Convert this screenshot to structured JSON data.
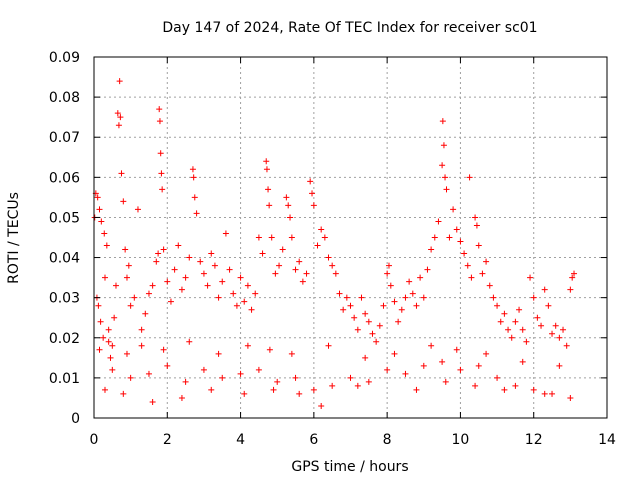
{
  "chart_data": {
    "type": "scatter",
    "title": "Day 147 of 2024, Rate Of TEC Index for receiver sc01",
    "xlabel": "GPS time / hours",
    "ylabel": "ROTI / TECUs",
    "xlim": [
      0,
      14
    ],
    "ylim": [
      0,
      0.09
    ],
    "x_ticks": [
      0,
      2,
      4,
      6,
      8,
      10,
      12,
      14
    ],
    "x_tick_labels": [
      "0",
      "2",
      "4",
      "6",
      "8",
      "10",
      "12",
      "14"
    ],
    "y_ticks": [
      0,
      0.01,
      0.02,
      0.03,
      0.04,
      0.05,
      0.06,
      0.07,
      0.08,
      0.09
    ],
    "y_tick_labels": [
      "0",
      "0.01",
      "0.02",
      "0.03",
      "0.04",
      "0.05",
      "0.06",
      "0.07",
      "0.08",
      "0.09"
    ],
    "grid": true,
    "marker": "plus",
    "series_color": "#ff0000",
    "series": [
      {
        "name": "ROTI",
        "points": [
          [
            0.05,
            0.056
          ],
          [
            0.1,
            0.055
          ],
          [
            0.15,
            0.052
          ],
          [
            0.2,
            0.049
          ],
          [
            0.28,
            0.046
          ],
          [
            0.35,
            0.043
          ],
          [
            0.02,
            0.05
          ],
          [
            0.08,
            0.03
          ],
          [
            0.12,
            0.028
          ],
          [
            0.18,
            0.024
          ],
          [
            0.25,
            0.02
          ],
          [
            0.3,
            0.035
          ],
          [
            0.4,
            0.022
          ],
          [
            0.45,
            0.015
          ],
          [
            0.5,
            0.018
          ],
          [
            0.55,
            0.025
          ],
          [
            0.6,
            0.033
          ],
          [
            0.65,
            0.076
          ],
          [
            0.7,
            0.084
          ],
          [
            0.72,
            0.075
          ],
          [
            0.68,
            0.073
          ],
          [
            0.75,
            0.061
          ],
          [
            0.8,
            0.054
          ],
          [
            0.85,
            0.042
          ],
          [
            0.9,
            0.035
          ],
          [
            0.95,
            0.038
          ],
          [
            1.0,
            0.028
          ],
          [
            1.1,
            0.03
          ],
          [
            1.2,
            0.052
          ],
          [
            1.3,
            0.022
          ],
          [
            1.4,
            0.026
          ],
          [
            1.5,
            0.031
          ],
          [
            1.6,
            0.033
          ],
          [
            1.7,
            0.039
          ],
          [
            1.75,
            0.041
          ],
          [
            1.78,
            0.077
          ],
          [
            1.8,
            0.074
          ],
          [
            1.82,
            0.066
          ],
          [
            1.84,
            0.061
          ],
          [
            1.86,
            0.057
          ],
          [
            1.9,
            0.042
          ],
          [
            2.0,
            0.034
          ],
          [
            2.1,
            0.029
          ],
          [
            2.2,
            0.037
          ],
          [
            2.3,
            0.043
          ],
          [
            2.4,
            0.032
          ],
          [
            2.5,
            0.035
          ],
          [
            2.6,
            0.04
          ],
          [
            2.7,
            0.062
          ],
          [
            2.72,
            0.06
          ],
          [
            2.75,
            0.055
          ],
          [
            2.8,
            0.051
          ],
          [
            2.9,
            0.039
          ],
          [
            3.0,
            0.036
          ],
          [
            3.1,
            0.033
          ],
          [
            3.2,
            0.041
          ],
          [
            3.3,
            0.038
          ],
          [
            3.4,
            0.03
          ],
          [
            3.5,
            0.034
          ],
          [
            3.6,
            0.046
          ],
          [
            3.7,
            0.037
          ],
          [
            3.8,
            0.031
          ],
          [
            3.9,
            0.028
          ],
          [
            4.0,
            0.035
          ],
          [
            4.1,
            0.029
          ],
          [
            4.2,
            0.033
          ],
          [
            4.3,
            0.027
          ],
          [
            4.4,
            0.031
          ],
          [
            4.5,
            0.045
          ],
          [
            4.6,
            0.041
          ],
          [
            4.7,
            0.064
          ],
          [
            4.72,
            0.062
          ],
          [
            4.75,
            0.057
          ],
          [
            4.78,
            0.053
          ],
          [
            4.85,
            0.045
          ],
          [
            4.95,
            0.036
          ],
          [
            5.05,
            0.038
          ],
          [
            5.15,
            0.042
          ],
          [
            5.25,
            0.055
          ],
          [
            5.3,
            0.053
          ],
          [
            5.35,
            0.05
          ],
          [
            5.4,
            0.045
          ],
          [
            5.5,
            0.037
          ],
          [
            5.6,
            0.039
          ],
          [
            5.7,
            0.034
          ],
          [
            5.8,
            0.036
          ],
          [
            5.9,
            0.059
          ],
          [
            5.95,
            0.056
          ],
          [
            6.0,
            0.053
          ],
          [
            6.1,
            0.043
          ],
          [
            6.2,
            0.047
          ],
          [
            6.3,
            0.045
          ],
          [
            6.4,
            0.04
          ],
          [
            6.5,
            0.038
          ],
          [
            6.6,
            0.036
          ],
          [
            6.7,
            0.031
          ],
          [
            6.8,
            0.027
          ],
          [
            6.9,
            0.03
          ],
          [
            7.0,
            0.028
          ],
          [
            7.1,
            0.025
          ],
          [
            7.2,
            0.022
          ],
          [
            7.3,
            0.03
          ],
          [
            7.4,
            0.026
          ],
          [
            7.5,
            0.024
          ],
          [
            7.6,
            0.021
          ],
          [
            7.7,
            0.019
          ],
          [
            7.8,
            0.023
          ],
          [
            7.9,
            0.028
          ],
          [
            8.0,
            0.036
          ],
          [
            8.05,
            0.038
          ],
          [
            8.1,
            0.033
          ],
          [
            8.2,
            0.029
          ],
          [
            8.3,
            0.024
          ],
          [
            8.4,
            0.027
          ],
          [
            8.5,
            0.03
          ],
          [
            8.6,
            0.034
          ],
          [
            8.7,
            0.031
          ],
          [
            8.8,
            0.028
          ],
          [
            8.9,
            0.035
          ],
          [
            9.0,
            0.03
          ],
          [
            9.1,
            0.037
          ],
          [
            9.2,
            0.042
          ],
          [
            9.3,
            0.045
          ],
          [
            9.4,
            0.049
          ],
          [
            9.5,
            0.063
          ],
          [
            9.52,
            0.074
          ],
          [
            9.55,
            0.068
          ],
          [
            9.58,
            0.06
          ],
          [
            9.62,
            0.057
          ],
          [
            9.7,
            0.045
          ],
          [
            9.8,
            0.052
          ],
          [
            9.9,
            0.047
          ],
          [
            10.0,
            0.044
          ],
          [
            10.1,
            0.041
          ],
          [
            10.2,
            0.038
          ],
          [
            10.25,
            0.06
          ],
          [
            10.3,
            0.035
          ],
          [
            10.4,
            0.05
          ],
          [
            10.45,
            0.048
          ],
          [
            10.5,
            0.043
          ],
          [
            10.6,
            0.036
          ],
          [
            10.7,
            0.039
          ],
          [
            10.8,
            0.033
          ],
          [
            10.9,
            0.03
          ],
          [
            11.0,
            0.028
          ],
          [
            11.1,
            0.024
          ],
          [
            11.2,
            0.026
          ],
          [
            11.3,
            0.022
          ],
          [
            11.4,
            0.02
          ],
          [
            11.5,
            0.024
          ],
          [
            11.6,
            0.027
          ],
          [
            11.7,
            0.022
          ],
          [
            11.8,
            0.019
          ],
          [
            11.9,
            0.035
          ],
          [
            12.0,
            0.03
          ],
          [
            12.1,
            0.025
          ],
          [
            12.2,
            0.023
          ],
          [
            12.3,
            0.032
          ],
          [
            12.4,
            0.028
          ],
          [
            12.5,
            0.021
          ],
          [
            12.6,
            0.023
          ],
          [
            12.7,
            0.02
          ],
          [
            12.8,
            0.022
          ],
          [
            12.9,
            0.018
          ],
          [
            13.0,
            0.032
          ],
          [
            13.05,
            0.035
          ],
          [
            13.1,
            0.036
          ],
          [
            0.5,
            0.012
          ],
          [
            1.0,
            0.01
          ],
          [
            1.5,
            0.011
          ],
          [
            2.0,
            0.013
          ],
          [
            2.5,
            0.009
          ],
          [
            3.0,
            0.012
          ],
          [
            3.5,
            0.01
          ],
          [
            4.0,
            0.011
          ],
          [
            4.5,
            0.012
          ],
          [
            5.0,
            0.009
          ],
          [
            5.5,
            0.01
          ],
          [
            6.0,
            0.007
          ],
          [
            6.2,
            0.003
          ],
          [
            6.5,
            0.008
          ],
          [
            7.0,
            0.01
          ],
          [
            7.5,
            0.009
          ],
          [
            8.0,
            0.012
          ],
          [
            8.5,
            0.011
          ],
          [
            9.0,
            0.013
          ],
          [
            9.5,
            0.014
          ],
          [
            10.0,
            0.012
          ],
          [
            10.5,
            0.013
          ],
          [
            11.0,
            0.01
          ],
          [
            11.5,
            0.008
          ],
          [
            12.0,
            0.007
          ],
          [
            12.5,
            0.006
          ],
          [
            13.0,
            0.005
          ],
          [
            0.3,
            0.007
          ],
          [
            0.8,
            0.006
          ],
          [
            1.6,
            0.004
          ],
          [
            2.4,
            0.005
          ],
          [
            3.2,
            0.007
          ],
          [
            4.1,
            0.006
          ],
          [
            4.9,
            0.007
          ],
          [
            5.6,
            0.006
          ],
          [
            7.2,
            0.008
          ],
          [
            8.8,
            0.007
          ],
          [
            9.6,
            0.009
          ],
          [
            10.4,
            0.008
          ],
          [
            11.2,
            0.007
          ],
          [
            12.3,
            0.006
          ],
          [
            0.15,
            0.017
          ],
          [
            0.4,
            0.019
          ],
          [
            0.9,
            0.016
          ],
          [
            1.3,
            0.018
          ],
          [
            1.9,
            0.017
          ],
          [
            2.6,
            0.019
          ],
          [
            3.4,
            0.016
          ],
          [
            4.2,
            0.018
          ],
          [
            4.8,
            0.017
          ],
          [
            5.4,
            0.016
          ],
          [
            6.4,
            0.018
          ],
          [
            7.4,
            0.015
          ],
          [
            8.2,
            0.016
          ],
          [
            9.2,
            0.018
          ],
          [
            9.9,
            0.017
          ],
          [
            10.7,
            0.016
          ],
          [
            11.7,
            0.014
          ],
          [
            12.7,
            0.013
          ]
        ]
      }
    ]
  }
}
